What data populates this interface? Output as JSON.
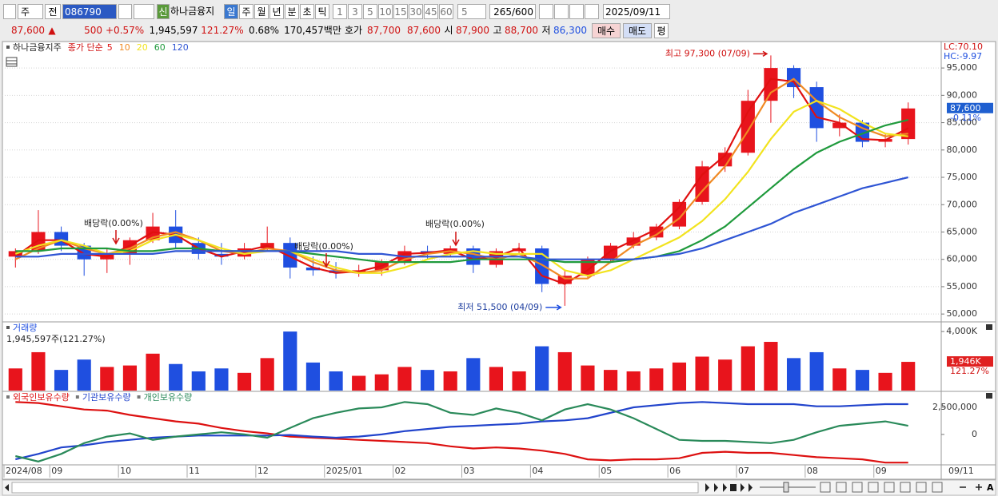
{
  "toolbar": {
    "period_type": "주",
    "search_scope": "전",
    "code": "086790",
    "credit": "신",
    "name": "하나금융지",
    "intervals": [
      "일",
      "주",
      "월",
      "년",
      "분",
      "초",
      "틱"
    ],
    "minutes": [
      "1",
      "3",
      "5",
      "10",
      "15",
      "30",
      "45",
      "60"
    ],
    "unit": "5",
    "count": "265",
    "max_count": "/600",
    "date": "2025/09/11"
  },
  "quote": {
    "price": "87,600",
    "change": "500",
    "change_rate": "+0.57%",
    "volume": "1,945,597",
    "volume_ratio": "121.27%",
    "turnover": "0.68%",
    "amount": "170,457백만",
    "ask_label": "호가",
    "ask": "87,700",
    "bid": "87,600",
    "open_label": "시",
    "open": "87,900",
    "high_label": "고",
    "high": "88,700",
    "low_label": "저",
    "low": "86,300",
    "buy": "매수",
    "sell": "매도",
    "avg": "평"
  },
  "chart_data": [
    {
      "type": "candlestick",
      "stock_name": "하나금융지주",
      "ma_label": "종가 단순",
      "categories": [
        "2024/08",
        null,
        "09",
        null,
        null,
        "10",
        null,
        null,
        "11",
        null,
        null,
        "12",
        null,
        null,
        "2025/01",
        null,
        null,
        "02",
        null,
        null,
        "03",
        null,
        null,
        "04",
        null,
        null,
        "05",
        null,
        null,
        "06",
        null,
        null,
        "07",
        null,
        null,
        "08",
        null,
        null,
        "09",
        null
      ],
      "x_end_label": "09/11",
      "open": [
        60500,
        61500,
        65000,
        62500,
        60000,
        61000,
        63500,
        66000,
        63000,
        61000,
        60500,
        62000,
        63000,
        58500,
        58000,
        57500,
        58000,
        59500,
        61500,
        61000,
        62000,
        59000,
        61500,
        62000,
        55500,
        57000,
        60000,
        62500,
        64000,
        66000,
        70500,
        77000,
        79500,
        89000,
        95000,
        91500,
        84000,
        85000,
        81500,
        82000
      ],
      "high": [
        62000,
        69000,
        66000,
        63000,
        62000,
        64000,
        68500,
        69000,
        64000,
        63000,
        63000,
        66000,
        64000,
        60500,
        59500,
        59000,
        60000,
        62500,
        62500,
        62500,
        62500,
        62000,
        63000,
        62500,
        58000,
        60500,
        63000,
        65000,
        66500,
        71000,
        78000,
        80500,
        91000,
        97300,
        95500,
        92500,
        86500,
        85500,
        83000,
        88700
      ],
      "low": [
        58500,
        61000,
        61500,
        57000,
        57500,
        59000,
        63000,
        62000,
        60000,
        59000,
        60000,
        61500,
        56500,
        57000,
        56500,
        56800,
        57000,
        59000,
        60000,
        60500,
        57500,
        58500,
        61000,
        54000,
        51500,
        56500,
        59500,
        62000,
        63500,
        65500,
        70000,
        76000,
        79000,
        85000,
        89500,
        81500,
        82500,
        80500,
        80500,
        81000
      ],
      "close": [
        61500,
        65000,
        62500,
        60000,
        61000,
        63500,
        66000,
        63000,
        61000,
        60500,
        62000,
        63000,
        58500,
        58000,
        57500,
        58000,
        59500,
        61500,
        61000,
        62000,
        59000,
        61500,
        62000,
        55500,
        57000,
        60000,
        62500,
        64000,
        66000,
        70500,
        77000,
        79500,
        89000,
        95000,
        91500,
        84000,
        85000,
        81500,
        82000,
        87600
      ],
      "up_color": "#e8141c",
      "down_color": "#1f4fe0",
      "series": [
        {
          "name": "5",
          "color": "#e01010",
          "values": [
            60500,
            63500,
            63500,
            61000,
            60500,
            62500,
            65000,
            64500,
            62000,
            60500,
            61500,
            62500,
            60500,
            58500,
            57500,
            57800,
            58800,
            61000,
            61200,
            61700,
            60000,
            60500,
            62000,
            57000,
            55500,
            58000,
            61500,
            63500,
            65500,
            69500,
            75500,
            79000,
            87000,
            93000,
            92500,
            86000,
            85000,
            82000,
            81800,
            84000
          ]
        },
        {
          "name": "10",
          "color": "#f08a24",
          "values": [
            60000,
            62000,
            63500,
            62000,
            61000,
            62000,
            64000,
            65000,
            63500,
            61500,
            61000,
            62000,
            61500,
            59500,
            58000,
            57500,
            58000,
            60000,
            61000,
            61500,
            61000,
            60000,
            61000,
            59000,
            56500,
            56500,
            59500,
            62500,
            64500,
            67500,
            72500,
            77000,
            83500,
            90500,
            93000,
            89000,
            86000,
            84000,
            82500,
            83000
          ]
        },
        {
          "name": "20",
          "color": "#f2e31e",
          "values": [
            61000,
            62500,
            63500,
            62500,
            61000,
            61500,
            63500,
            64500,
            63500,
            62000,
            61000,
            61500,
            61500,
            60000,
            58500,
            57500,
            57500,
            58500,
            60000,
            61000,
            61500,
            61000,
            61000,
            61000,
            58000,
            57000,
            58000,
            60000,
            62000,
            64000,
            67000,
            71000,
            76000,
            82000,
            87000,
            89000,
            87500,
            85000,
            83000,
            82500
          ]
        },
        {
          "name": "60",
          "color": "#1f9a3c",
          "values": [
            61500,
            61500,
            62000,
            62000,
            62000,
            61500,
            61500,
            62000,
            62000,
            61500,
            61500,
            61500,
            61500,
            61000,
            60500,
            60000,
            59500,
            59500,
            59500,
            59500,
            60000,
            60000,
            60000,
            60000,
            59500,
            59500,
            59500,
            60000,
            60500,
            61500,
            63500,
            66000,
            69500,
            73000,
            76500,
            79500,
            81500,
            83000,
            84500,
            85500
          ]
        },
        {
          "name": "120",
          "color": "#2f55d4",
          "values": [
            60500,
            60500,
            61000,
            61000,
            61000,
            61000,
            61000,
            61500,
            61500,
            61500,
            61500,
            61500,
            61500,
            61500,
            61500,
            61000,
            61000,
            60500,
            60500,
            60500,
            60500,
            60500,
            60500,
            60000,
            60000,
            60000,
            60000,
            60000,
            60500,
            61000,
            62000,
            63500,
            65000,
            66500,
            68500,
            70000,
            71500,
            73000,
            74000,
            75000
          ]
        }
      ],
      "ylim": [
        49000,
        99400
      ],
      "yticks": [
        {
          "value": 50000,
          "label": "50,000"
        },
        {
          "value": 55000,
          "label": "55,000"
        },
        {
          "value": 60000,
          "label": "60,000"
        },
        {
          "value": 65000,
          "label": "65,000"
        },
        {
          "value": 70000,
          "label": "70,000"
        },
        {
          "value": 75000,
          "label": "75,000"
        },
        {
          "value": 80000,
          "label": "80,000"
        },
        {
          "value": 85000,
          "label": "85,000"
        },
        {
          "value": 90000,
          "label": "90,000"
        },
        {
          "value": 95000,
          "label": "95,000"
        }
      ],
      "grid": true,
      "high_label": "최고 97,300 (07/09)",
      "low_label": "최저 51,500 (04/09)",
      "dividend_labels": [
        "배당락(0.00%)",
        "배당락(0.00%)",
        "배당락(0.00%)"
      ],
      "lc": "LC:70.10",
      "hc": "HC:-9.97",
      "last_price_label": "87,600",
      "last_change": "-0.11%"
    },
    {
      "type": "bar",
      "title": "거래량",
      "last_label": "1,945,597주(121.27%)",
      "values": [
        1500000,
        2600000,
        1400000,
        2100000,
        1600000,
        1700000,
        2500000,
        1800000,
        1300000,
        1500000,
        1200000,
        2200000,
        4000000,
        1900000,
        1300000,
        1000000,
        1100000,
        1600000,
        1400000,
        1300000,
        2200000,
        1600000,
        1300000,
        3000000,
        2600000,
        1700000,
        1400000,
        1300000,
        1500000,
        1900000,
        2300000,
        2100000,
        3000000,
        3300000,
        2200000,
        2600000,
        1500000,
        1400000,
        1200000,
        1945597
      ],
      "ylim": [
        0,
        4600000
      ],
      "yticks": [
        {
          "value": 4000000,
          "label": "4,000K"
        }
      ],
      "last_value_label": "1,946K",
      "last_ratio_label": "121.27%"
    },
    {
      "type": "line",
      "series": [
        {
          "name": "외국인보유수량",
          "color": "#dd1111",
          "values": [
            3000000,
            2900000,
            2600000,
            2300000,
            2200000,
            1800000,
            1500000,
            1200000,
            1000000,
            600000,
            300000,
            100000,
            -200000,
            -300000,
            -400000,
            -500000,
            -600000,
            -700000,
            -800000,
            -1100000,
            -1300000,
            -1200000,
            -1300000,
            -1500000,
            -1800000,
            -2300000,
            -2400000,
            -2300000,
            -2300000,
            -2200000,
            -1700000,
            -1600000,
            -1700000,
            -1700000,
            -1900000,
            -2100000,
            -2200000,
            -2300000,
            -2600000,
            -2600000
          ]
        },
        {
          "name": "기관보유수량",
          "color": "#2244cc",
          "values": [
            -2300000,
            -1800000,
            -1200000,
            -1000000,
            -700000,
            -500000,
            -300000,
            -200000,
            -100000,
            -100000,
            -100000,
            -100000,
            -50000,
            -200000,
            -300000,
            -200000,
            0,
            300000,
            500000,
            700000,
            800000,
            900000,
            1000000,
            1200000,
            1300000,
            1500000,
            2000000,
            2500000,
            2700000,
            2900000,
            3000000,
            2900000,
            2800000,
            2800000,
            2800000,
            2600000,
            2600000,
            2700000,
            2800000,
            2800000
          ]
        },
        {
          "name": "개인보유수량",
          "color": "#2a8a5a",
          "values": [
            -2000000,
            -2500000,
            -1800000,
            -800000,
            -200000,
            100000,
            -500000,
            -200000,
            0,
            200000,
            0,
            -300000,
            600000,
            1500000,
            2000000,
            2400000,
            2500000,
            3000000,
            2800000,
            2000000,
            1800000,
            2400000,
            2000000,
            1300000,
            2300000,
            2800000,
            2300000,
            1500000,
            500000,
            -500000,
            -600000,
            -600000,
            -700000,
            -800000,
            -500000,
            200000,
            800000,
            1000000,
            1200000,
            800000
          ]
        }
      ],
      "ylim": [
        -2810000,
        3830000
      ],
      "yticks": [
        {
          "value": 2500000,
          "label": "2,500,000"
        },
        0
      ]
    }
  ]
}
